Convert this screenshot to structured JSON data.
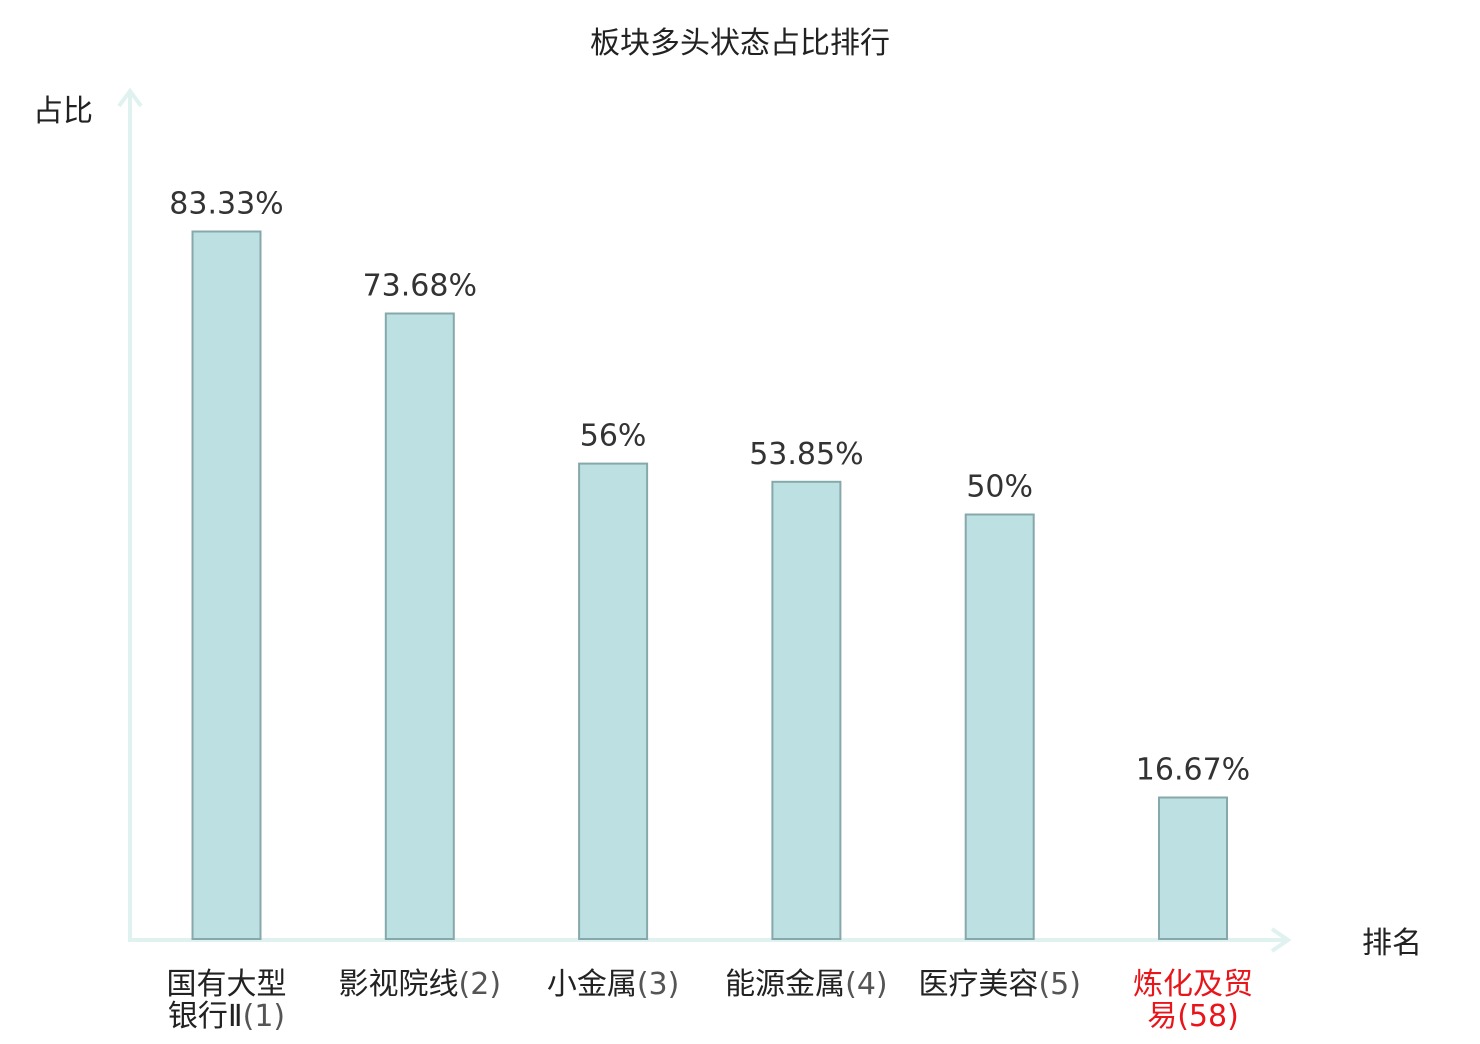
{
  "chart_data": {
    "type": "bar",
    "title": "板块多头状态占比排行",
    "ylabel": "占比",
    "xlabel": "排名",
    "ylim": [
      0,
      100
    ],
    "grid": false,
    "categories": [
      {
        "name_lines": [
          "国有大型",
          "银行Ⅱ"
        ],
        "rank": "(1)",
        "highlight": false
      },
      {
        "name_lines": [
          "影视院线"
        ],
        "rank": "(2)",
        "highlight": false
      },
      {
        "name_lines": [
          "小金属"
        ],
        "rank": "(3)",
        "highlight": false
      },
      {
        "name_lines": [
          "能源金属"
        ],
        "rank": "(4)",
        "highlight": false
      },
      {
        "name_lines": [
          "医疗美容"
        ],
        "rank": "(5)",
        "highlight": false
      },
      {
        "name_lines": [
          "炼化及贸",
          "易"
        ],
        "rank": "(58)",
        "highlight": true
      }
    ],
    "values": [
      83.33,
      73.68,
      56,
      53.85,
      50,
      16.67
    ],
    "value_labels": [
      "83.33%",
      "73.68%",
      "56%",
      "53.85%",
      "50%",
      "16.67%"
    ]
  },
  "colors": {
    "bar_fill": "#bde0e2",
    "bar_stroke": "#86a8aa",
    "axis": "#dff2f0",
    "text": "#222222",
    "value_text": "#333333",
    "rank_text": "#555555",
    "highlight": "#e8151b"
  }
}
